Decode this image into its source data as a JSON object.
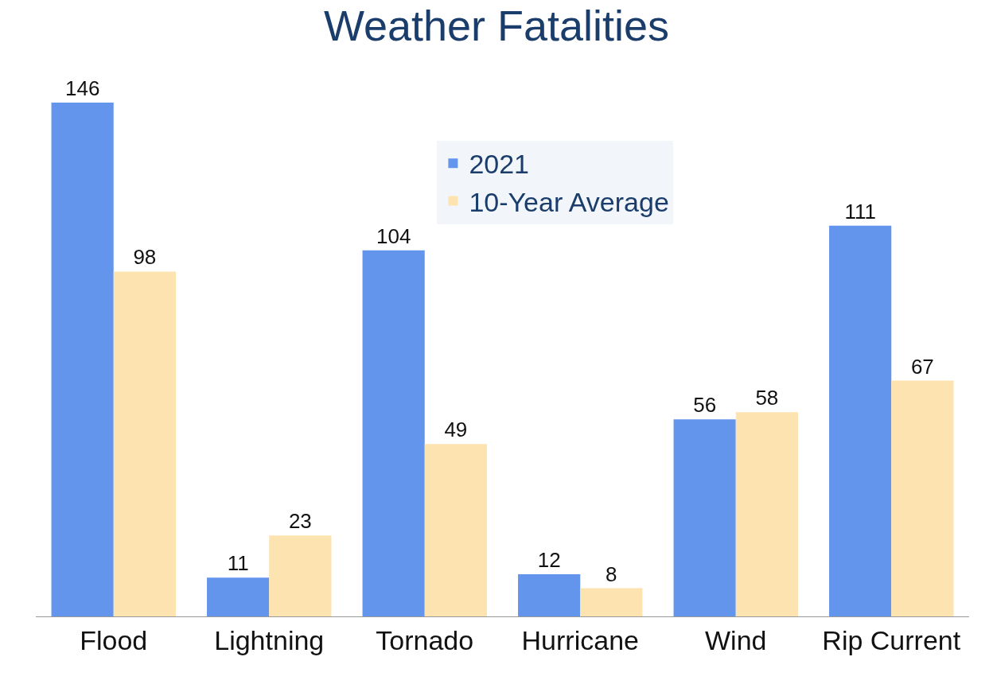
{
  "chart_data": {
    "type": "bar",
    "title": "Weather Fatalities",
    "categories": [
      "Flood",
      "Lightning",
      "Tornado",
      "Hurricane",
      "Wind",
      "Rip Current"
    ],
    "series": [
      {
        "name": "2021",
        "color": "#6495ed",
        "values": [
          146,
          11,
          104,
          12,
          56,
          111
        ]
      },
      {
        "name": "10-Year Average",
        "color": "#fde3b0",
        "values": [
          98,
          23,
          49,
          8,
          58,
          67
        ]
      }
    ],
    "data_labels": true,
    "legend": "top right"
  }
}
